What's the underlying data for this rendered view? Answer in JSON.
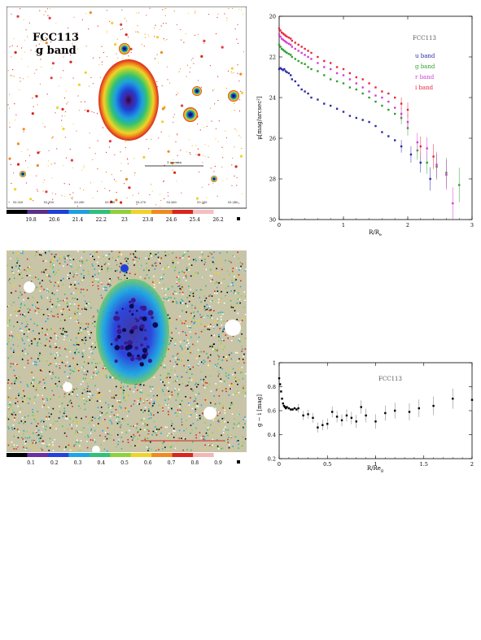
{
  "top_image": {
    "galaxy_label": [
      "FCC113",
      "g band"
    ],
    "scale_label": "1 arcmin",
    "ra_ticks": [
      "53.320",
      "53.300",
      "53.290",
      "53.280",
      "53.270",
      "53.260",
      "53.250",
      "53.240"
    ],
    "colorbar_ticks": [
      "19.8",
      "20.6",
      "21.4",
      "22.2",
      "23",
      "23.8",
      "24.6",
      "25.4",
      "26.2"
    ],
    "colorbar_colors": [
      "#000000",
      "#5a2f8c",
      "#1f3fd6",
      "#1e9fe0",
      "#2fc07a",
      "#8fd13a",
      "#f0d22a",
      "#f08a1f",
      "#d8261c",
      "#f4c0c0",
      "#ffffff"
    ]
  },
  "bottom_image": {
    "colorbar_ticks": [
      "0.1",
      "0.2",
      "0.3",
      "0.4",
      "0.5",
      "0.6",
      "0.7",
      "0.8",
      "0.9"
    ],
    "colorbar_colors": [
      "#000000",
      "#6a2fa0",
      "#2440e0",
      "#1aa6e6",
      "#2fc07a",
      "#8fd13a",
      "#f0d22a",
      "#f08a1f",
      "#d8261c",
      "#f2b6b6",
      "#ffffff"
    ]
  },
  "chart_data": [
    {
      "type": "scatter",
      "title": "",
      "xlabel": "R/R",
      "xlabel_sub": "e",
      "ylabel": "μ[mag/arcsec²]",
      "xlim": [
        0,
        3
      ],
      "ylim": [
        30,
        20
      ],
      "xticks": [
        "0",
        "1",
        "2",
        "3"
      ],
      "yticks": [
        "20",
        "22",
        "24",
        "26",
        "28",
        "30"
      ],
      "legend_title": "FCC113",
      "legend_position": "right",
      "series": [
        {
          "name": "u band",
          "color": "#2a2aa8",
          "x": [
            0.0,
            0.02,
            0.04,
            0.06,
            0.08,
            0.1,
            0.12,
            0.15,
            0.18,
            0.2,
            0.25,
            0.3,
            0.35,
            0.4,
            0.45,
            0.5,
            0.6,
            0.7,
            0.8,
            0.9,
            1.0,
            1.1,
            1.2,
            1.3,
            1.4,
            1.5,
            1.6,
            1.7,
            1.8,
            1.9,
            2.05,
            2.2,
            2.35
          ],
          "y": [
            22.6,
            22.55,
            22.6,
            22.65,
            22.6,
            22.7,
            22.75,
            22.8,
            22.9,
            23.1,
            23.2,
            23.4,
            23.6,
            23.7,
            23.8,
            24.0,
            24.1,
            24.3,
            24.4,
            24.55,
            24.7,
            24.9,
            25.0,
            25.1,
            25.2,
            25.4,
            25.7,
            25.9,
            26.1,
            26.4,
            26.8,
            27.2,
            28.0
          ]
        },
        {
          "name": "g band",
          "color": "#2ea02e",
          "x": [
            0.0,
            0.02,
            0.04,
            0.06,
            0.08,
            0.1,
            0.12,
            0.15,
            0.18,
            0.2,
            0.25,
            0.3,
            0.35,
            0.4,
            0.45,
            0.5,
            0.6,
            0.7,
            0.8,
            0.9,
            1.0,
            1.1,
            1.2,
            1.3,
            1.4,
            1.5,
            1.6,
            1.7,
            1.8,
            1.9,
            2.0,
            2.15,
            2.3,
            2.45,
            2.6,
            2.8
          ],
          "y": [
            21.4,
            21.5,
            21.6,
            21.65,
            21.7,
            21.75,
            21.8,
            21.85,
            21.9,
            22.0,
            22.1,
            22.2,
            22.3,
            22.35,
            22.5,
            22.6,
            22.7,
            22.9,
            23.1,
            23.2,
            23.3,
            23.5,
            23.6,
            23.8,
            24.0,
            24.2,
            24.4,
            24.6,
            24.8,
            25.0,
            25.5,
            26.6,
            27.2,
            27.4,
            27.7,
            28.3
          ]
        },
        {
          "name": "r band",
          "color": "#d23fd2",
          "x": [
            0.0,
            0.02,
            0.04,
            0.06,
            0.08,
            0.1,
            0.12,
            0.15,
            0.18,
            0.2,
            0.25,
            0.3,
            0.35,
            0.4,
            0.45,
            0.5,
            0.6,
            0.7,
            0.8,
            0.9,
            1.0,
            1.1,
            1.2,
            1.3,
            1.4,
            1.5,
            1.6,
            1.7,
            1.8,
            1.9,
            2.0,
            2.15,
            2.3,
            2.45,
            2.6,
            2.7
          ],
          "y": [
            20.9,
            21.0,
            21.1,
            21.15,
            21.2,
            21.25,
            21.3,
            21.35,
            21.4,
            21.5,
            21.6,
            21.7,
            21.8,
            21.9,
            22.0,
            22.1,
            22.3,
            22.5,
            22.6,
            22.8,
            22.9,
            23.1,
            23.3,
            23.5,
            23.7,
            23.9,
            24.0,
            24.2,
            24.5,
            24.8,
            25.2,
            26.2,
            26.5,
            27.3,
            27.8,
            29.2
          ]
        },
        {
          "name": "i band",
          "color": "#e8263c",
          "x": [
            0.0,
            0.02,
            0.04,
            0.06,
            0.08,
            0.1,
            0.12,
            0.15,
            0.18,
            0.2,
            0.25,
            0.3,
            0.35,
            0.4,
            0.45,
            0.5,
            0.6,
            0.7,
            0.8,
            0.9,
            1.0,
            1.1,
            1.2,
            1.3,
            1.4,
            1.5,
            1.6,
            1.7,
            1.8,
            1.9,
            2.0,
            2.2,
            2.4
          ],
          "y": [
            20.6,
            20.7,
            20.8,
            20.85,
            20.9,
            20.95,
            21.0,
            21.05,
            21.1,
            21.2,
            21.3,
            21.4,
            21.5,
            21.6,
            21.7,
            21.8,
            22.0,
            22.2,
            22.3,
            22.5,
            22.6,
            22.8,
            23.0,
            23.1,
            23.3,
            23.5,
            23.7,
            23.8,
            24.0,
            24.3,
            24.6,
            26.4,
            26.9
          ]
        }
      ]
    },
    {
      "type": "scatter",
      "title": "",
      "xlabel": "R/Re",
      "xlabel_sub": "g",
      "ylabel": "g − i [mag]",
      "xlim": [
        0,
        2
      ],
      "ylim": [
        0.2,
        1.0
      ],
      "xticks": [
        "0",
        "0.5",
        "1",
        "1.5",
        "2"
      ],
      "yticks": [
        "0.2",
        "0.4",
        "0.6",
        "0.8",
        "1"
      ],
      "annotation": "FCC113",
      "series": [
        {
          "name": "",
          "color": "#000000",
          "x": [
            0.0,
            0.01,
            0.02,
            0.03,
            0.04,
            0.05,
            0.06,
            0.07,
            0.08,
            0.1,
            0.12,
            0.14,
            0.16,
            0.18,
            0.2,
            0.25,
            0.3,
            0.35,
            0.4,
            0.45,
            0.5,
            0.55,
            0.6,
            0.65,
            0.7,
            0.75,
            0.8,
            0.85,
            0.9,
            1.0,
            1.1,
            1.2,
            1.35,
            1.45,
            1.6,
            1.8,
            2.0
          ],
          "y": [
            0.87,
            0.82,
            0.76,
            0.7,
            0.66,
            0.64,
            0.63,
            0.62,
            0.63,
            0.62,
            0.61,
            0.61,
            0.62,
            0.61,
            0.62,
            0.56,
            0.57,
            0.54,
            0.46,
            0.48,
            0.49,
            0.59,
            0.55,
            0.52,
            0.56,
            0.54,
            0.51,
            0.63,
            0.56,
            0.51,
            0.58,
            0.6,
            0.59,
            0.62,
            0.64,
            0.7,
            0.69
          ]
        }
      ]
    }
  ]
}
